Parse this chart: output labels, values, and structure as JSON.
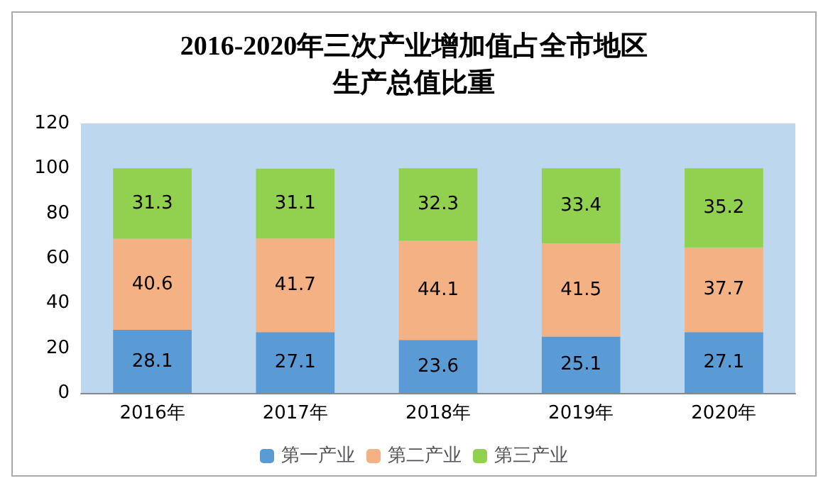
{
  "chart_data": {
    "type": "bar",
    "title": "2016-2020年三次产业增加值占全市地区生产总值比重",
    "categories": [
      "2016年",
      "2017年",
      "2018年",
      "2019年",
      "2020年"
    ],
    "series": [
      {
        "name": "第一产业",
        "color": "#5b9bd5",
        "values": [
          28.1,
          27.1,
          23.6,
          25.1,
          27.1
        ]
      },
      {
        "name": "第二产业",
        "color": "#f4b183",
        "values": [
          40.6,
          41.7,
          44.1,
          41.5,
          37.7
        ]
      },
      {
        "name": "第三产业",
        "color": "#92d050",
        "values": [
          31.3,
          31.1,
          32.3,
          33.4,
          35.2
        ]
      }
    ],
    "stacked": true,
    "ylim": [
      0,
      120
    ],
    "yticks": [
      0,
      20,
      40,
      60,
      80,
      100,
      120
    ],
    "data_labels": true,
    "legend": "bottom",
    "grid": false
  }
}
